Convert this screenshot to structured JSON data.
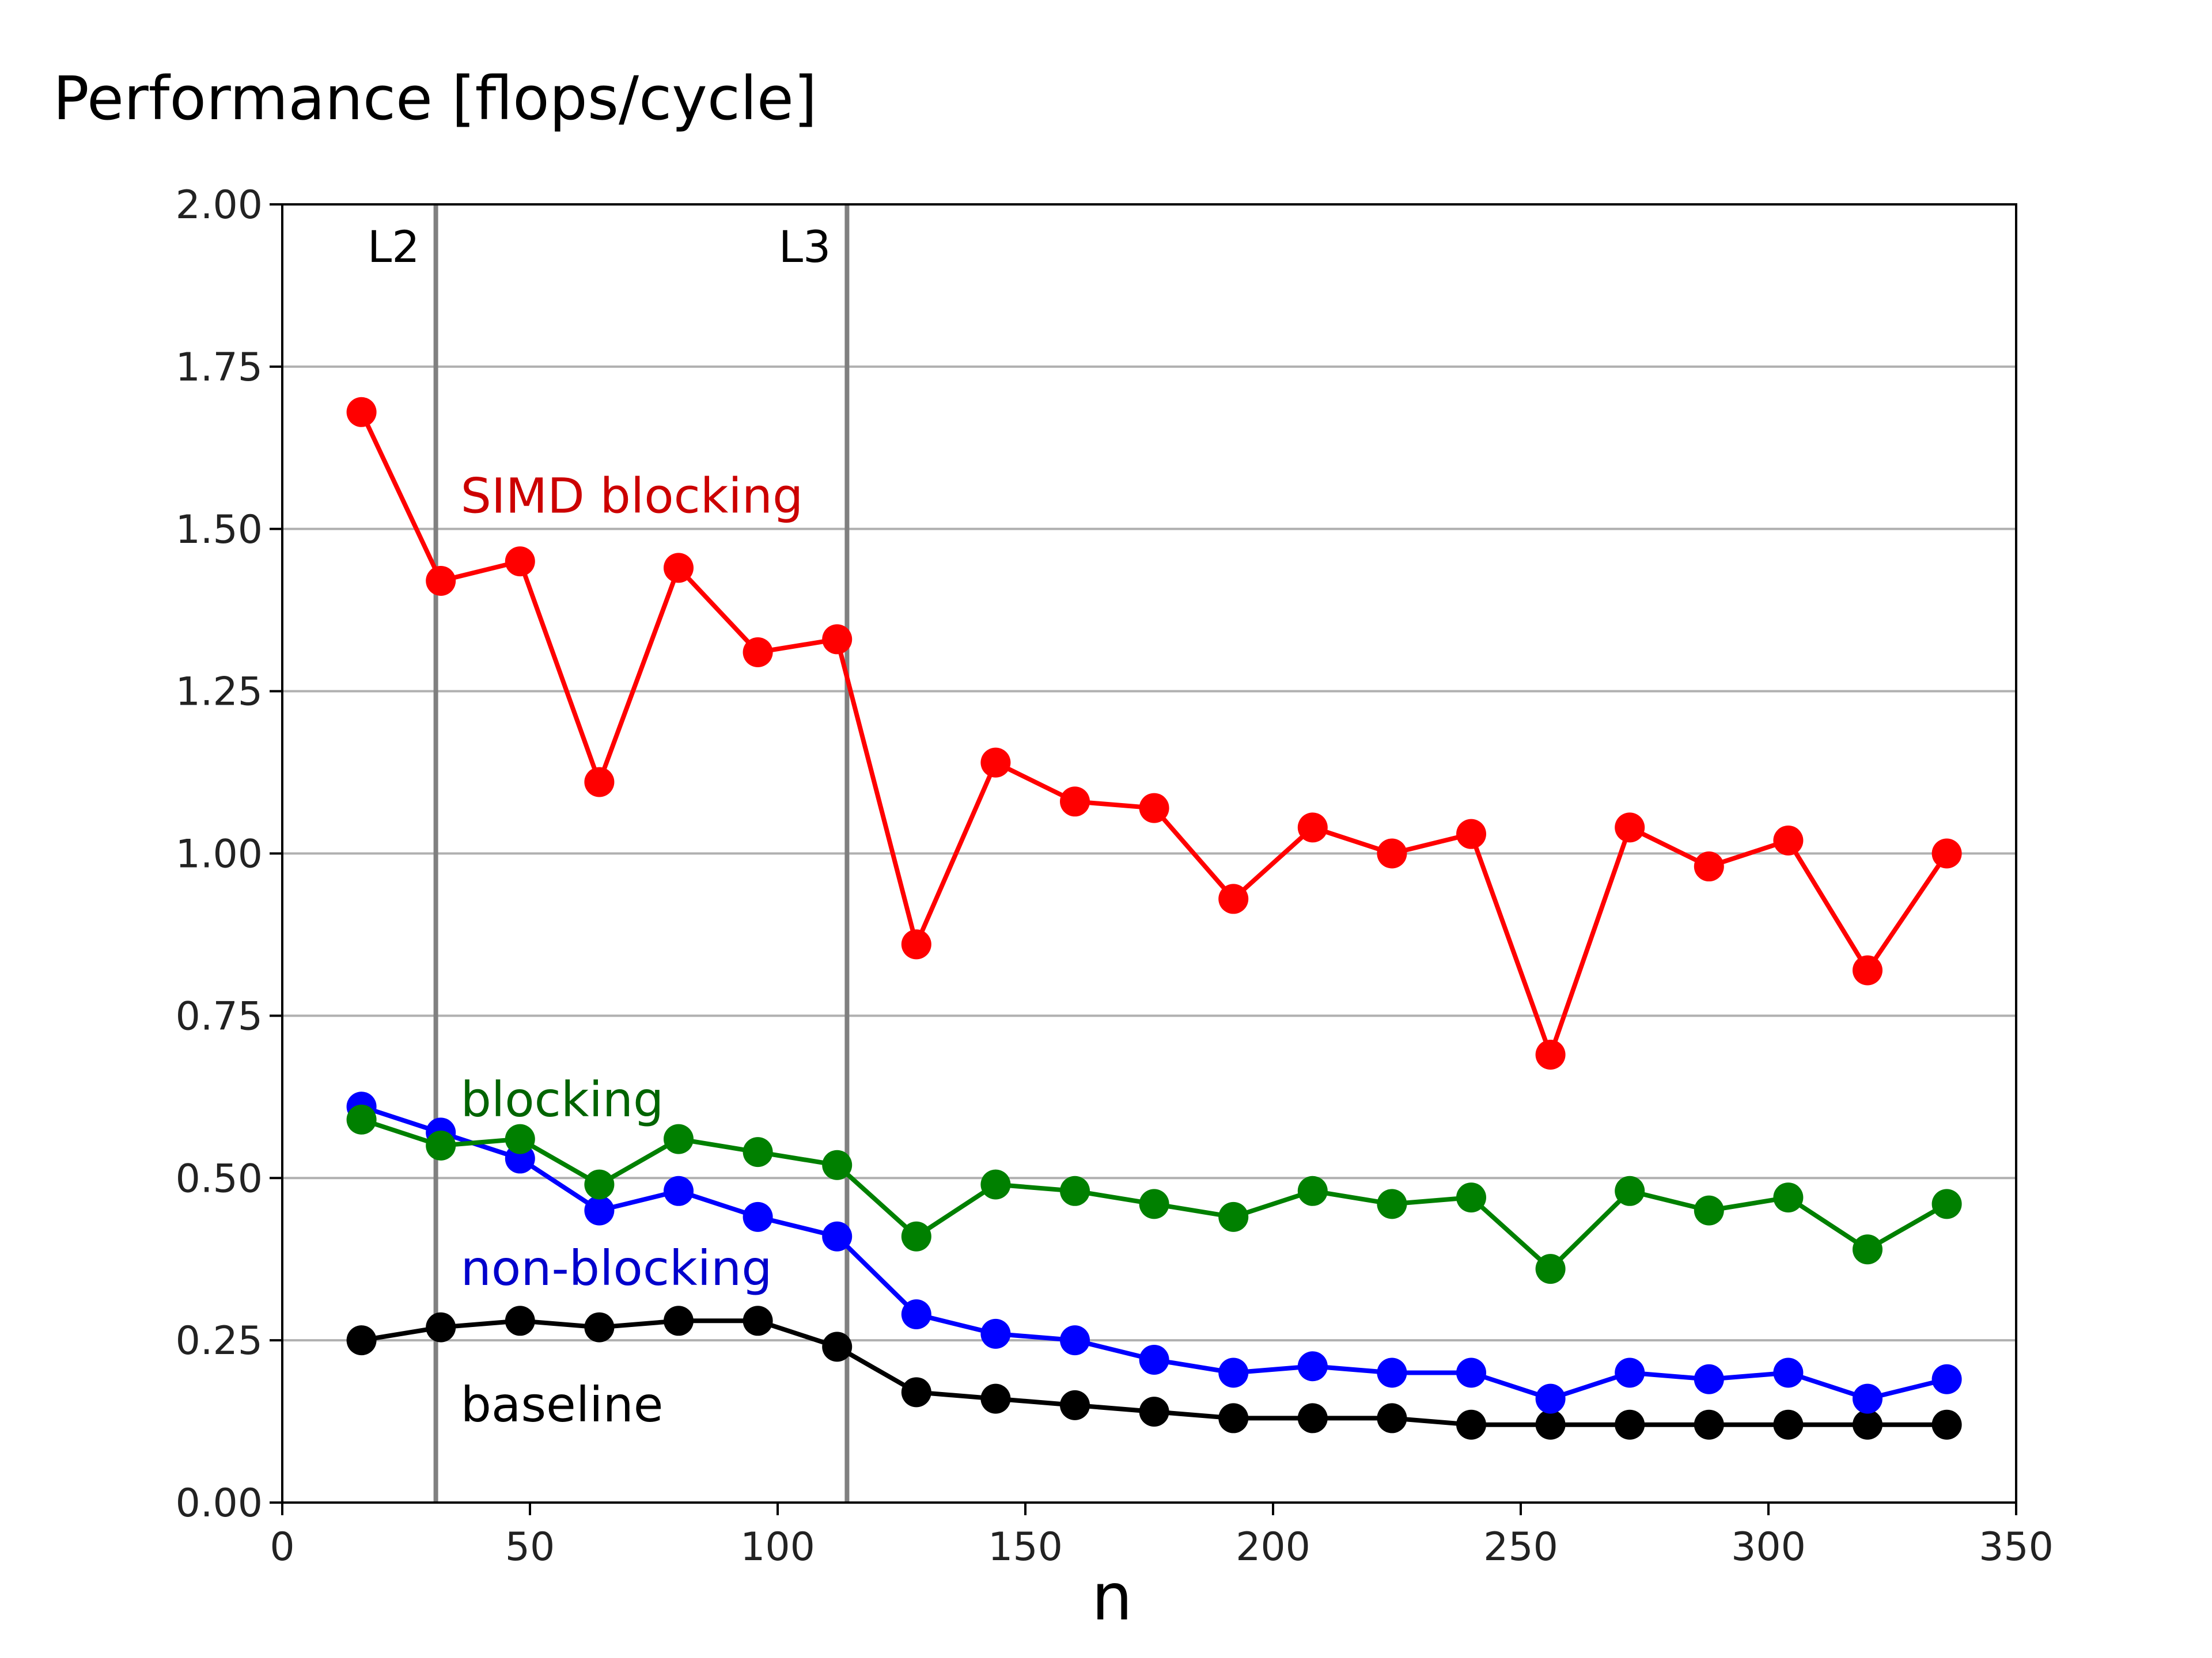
{
  "chart_data": {
    "type": "line",
    "title": "Performance [flops/cycle]",
    "xlabel": "n",
    "ylabel": "",
    "xlim": [
      0,
      350
    ],
    "ylim": [
      0,
      2.0
    ],
    "x_ticks": [
      0,
      50,
      100,
      150,
      200,
      250,
      300,
      350
    ],
    "y_ticks": [
      "0.00",
      "0.25",
      "0.50",
      "0.75",
      "1.00",
      "1.25",
      "1.50",
      "1.75",
      "2.00"
    ],
    "grid": "horizontal",
    "x": [
      16,
      32,
      48,
      64,
      80,
      96,
      112,
      128,
      144,
      160,
      176,
      192,
      208,
      224,
      240,
      256,
      272,
      288,
      304,
      320,
      336
    ],
    "series": [
      {
        "name": "SIMD blocking",
        "color": "#ff0000",
        "values": [
          1.68,
          1.42,
          1.45,
          1.11,
          1.44,
          1.31,
          1.33,
          0.86,
          1.14,
          1.08,
          1.07,
          0.93,
          1.04,
          1.0,
          1.03,
          0.69,
          1.04,
          0.98,
          1.02,
          0.82,
          1.0
        ]
      },
      {
        "name": "blocking",
        "color": "#008000",
        "values": [
          0.59,
          0.55,
          0.56,
          0.49,
          0.56,
          0.54,
          0.52,
          0.41,
          0.49,
          0.48,
          0.46,
          0.44,
          0.48,
          0.46,
          0.47,
          0.36,
          0.48,
          0.45,
          0.47,
          0.39,
          0.46
        ]
      },
      {
        "name": "non-blocking",
        "color": "#0000ff",
        "values": [
          0.61,
          0.57,
          0.53,
          0.45,
          0.48,
          0.44,
          0.41,
          0.29,
          0.26,
          0.25,
          0.22,
          0.2,
          0.21,
          0.2,
          0.2,
          0.16,
          0.2,
          0.19,
          0.2,
          0.16,
          0.19
        ]
      },
      {
        "name": "baseline",
        "color": "#000000",
        "values": [
          0.25,
          0.27,
          0.28,
          0.27,
          0.28,
          0.28,
          0.24,
          0.17,
          0.16,
          0.15,
          0.14,
          0.13,
          0.13,
          0.13,
          0.12,
          0.12,
          0.12,
          0.12,
          0.12,
          0.12,
          0.12
        ]
      }
    ],
    "vlines": [
      {
        "label": "L2",
        "x": 31,
        "color": "#808080"
      },
      {
        "label": "L3",
        "x": 114,
        "color": "#808080"
      }
    ],
    "annotations": [
      {
        "text": "SIMD blocking",
        "x": 36,
        "y": 1.55,
        "color": "#cc0000"
      },
      {
        "text": "blocking",
        "x": 36,
        "y": 0.62,
        "color": "#006400"
      },
      {
        "text": "non-blocking",
        "x": 36,
        "y": 0.36,
        "color": "#0000cc"
      },
      {
        "text": "baseline",
        "x": 36,
        "y": 0.15,
        "color": "#000000"
      }
    ]
  }
}
